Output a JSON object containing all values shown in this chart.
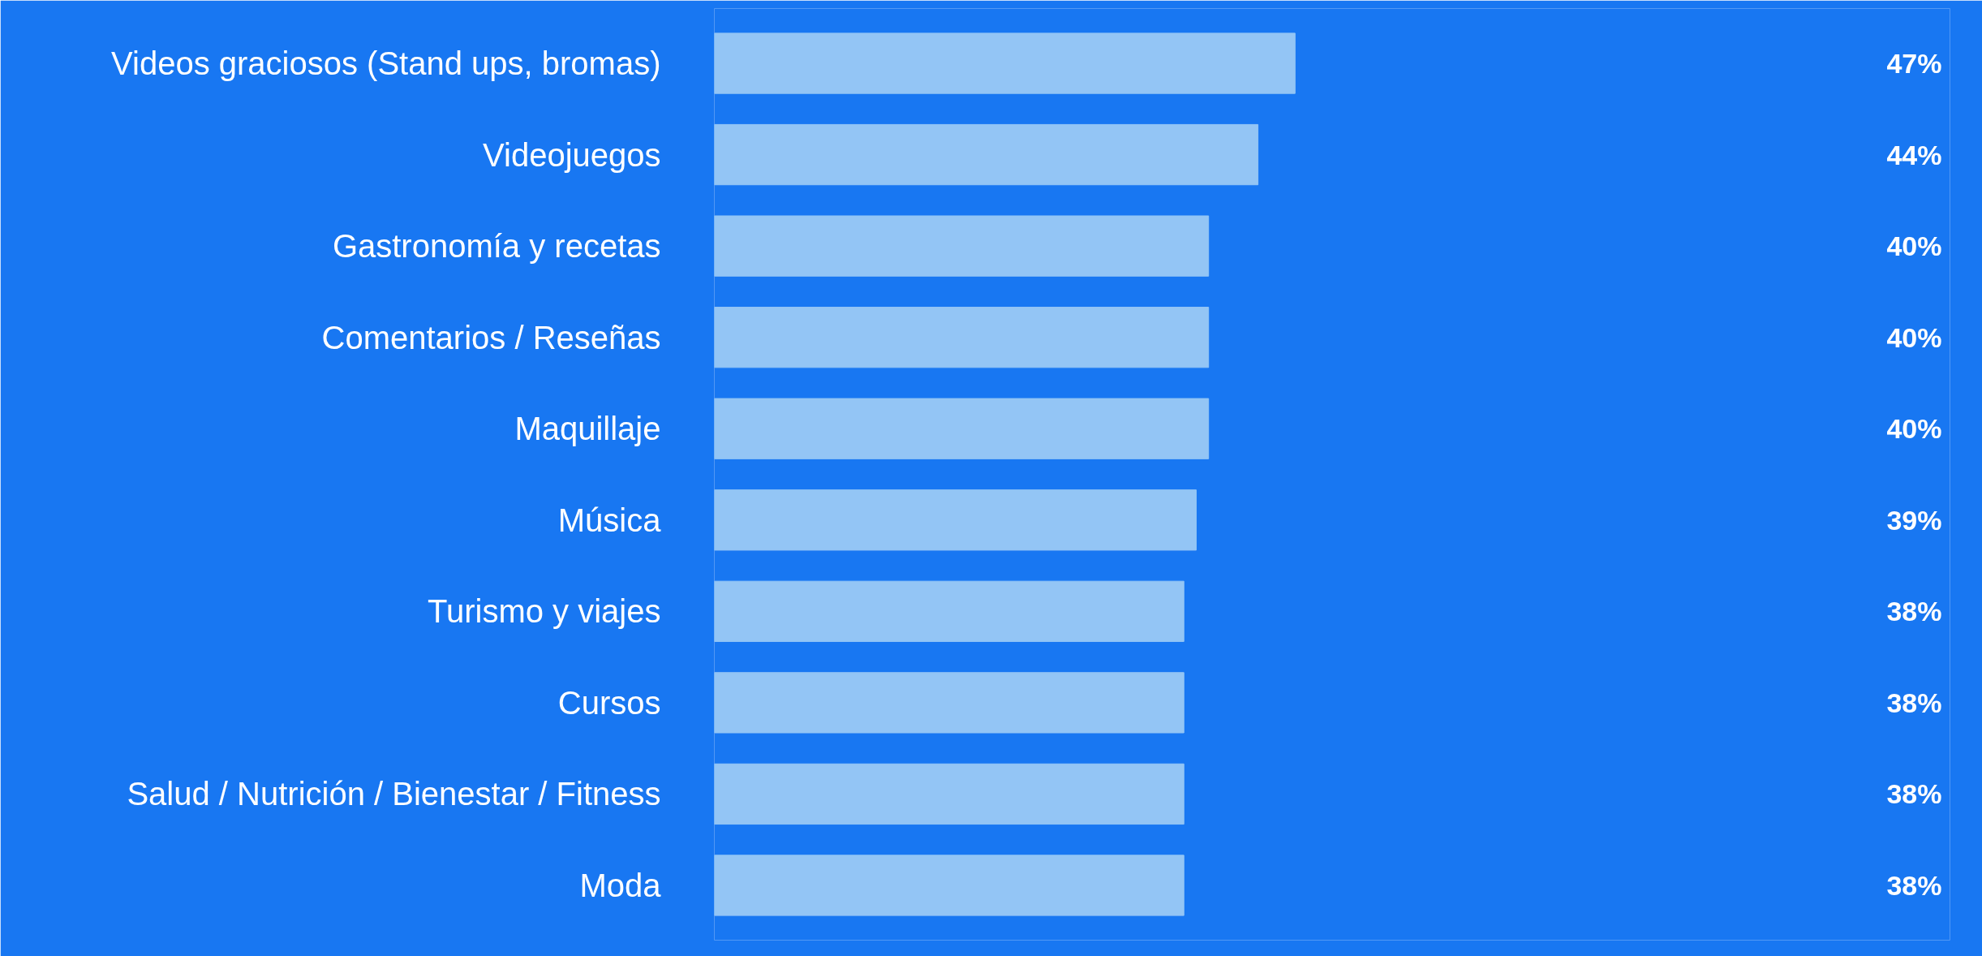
{
  "chart_data": {
    "type": "bar",
    "orientation": "horizontal",
    "categories": [
      "Videos graciosos (Stand ups, bromas)",
      "Videojuegos",
      "Gastronomía y recetas",
      "Comentarios / Reseñas",
      "Maquillaje",
      "Música",
      "Turismo y viajes",
      "Cursos",
      "Salud / Nutrición / Bienestar / Fitness",
      "Moda"
    ],
    "values": [
      47,
      44,
      40,
      40,
      40,
      39,
      38,
      38,
      38,
      38
    ],
    "value_labels": [
      "47%",
      "44%",
      "40%",
      "40%",
      "40%",
      "39%",
      "38%",
      "38%",
      "38%",
      "38%"
    ],
    "color": "#93c5f5",
    "xlim": [
      0,
      100
    ]
  }
}
